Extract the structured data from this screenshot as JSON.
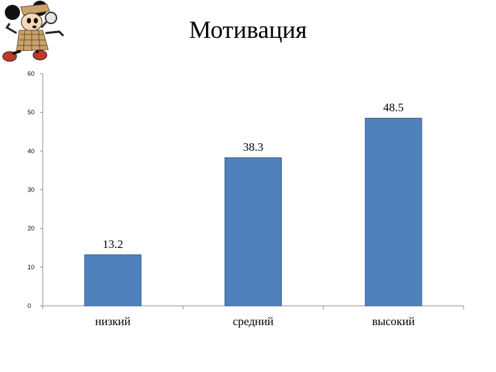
{
  "slide": {
    "title": "Мотивация",
    "mascot_icon": "cartoon-mouse-detective-icon"
  },
  "colors": {
    "bar_fill": "#4f81bd",
    "bar_stroke": "#385d8a",
    "axis": "#8c8c8c"
  },
  "chart_data": {
    "type": "bar",
    "categories": [
      "низкий",
      "средний",
      "высокий"
    ],
    "values": [
      13.2,
      38.3,
      48.5
    ],
    "data_labels": [
      "13.2",
      "38.3",
      "48.5"
    ],
    "title": "",
    "xlabel": "",
    "ylabel": "",
    "ylim": [
      0,
      60
    ],
    "yticks": [
      0,
      10,
      20,
      30,
      40,
      50,
      60
    ],
    "grid": false,
    "legend": "none"
  }
}
